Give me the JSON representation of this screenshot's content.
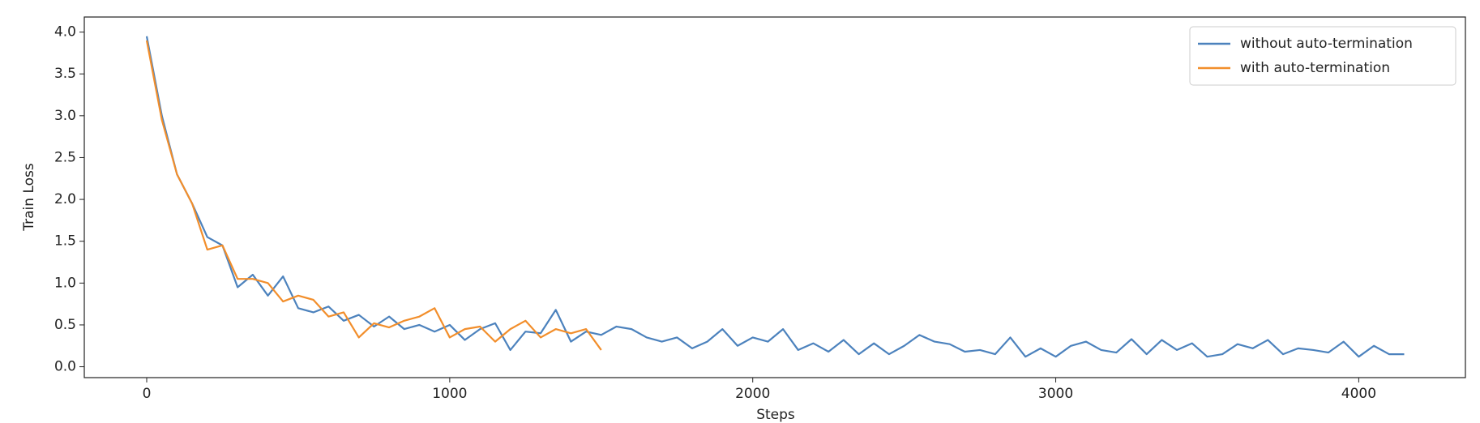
{
  "chart_data": {
    "type": "line",
    "xlabel": "Steps",
    "ylabel": "Train Loss",
    "x": [
      0,
      50,
      100,
      150,
      200,
      250,
      300,
      350,
      400,
      450,
      500,
      550,
      600,
      650,
      700,
      750,
      800,
      850,
      900,
      950,
      1000,
      1050,
      1100,
      1150,
      1200,
      1250,
      1300,
      1350,
      1400,
      1450,
      1500,
      1550,
      1600,
      1650,
      1700,
      1750,
      1800,
      1850,
      1900,
      1950,
      2000,
      2050,
      2100,
      2150,
      2200,
      2250,
      2300,
      2350,
      2400,
      2450,
      2500,
      2550,
      2600,
      2650,
      2700,
      2750,
      2800,
      2850,
      2900,
      2950,
      3000,
      3050,
      3100,
      3150,
      3200,
      3250,
      3300,
      3350,
      3400,
      3450,
      3500,
      3550,
      3600,
      3650,
      3700,
      3750,
      3800,
      3850,
      3900,
      3950,
      4000,
      4050,
      4100,
      4150
    ],
    "series": [
      {
        "name": "without auto-termination",
        "color": "#4c82bd",
        "values": [
          3.95,
          3.0,
          2.3,
          1.95,
          1.55,
          1.45,
          0.95,
          1.1,
          0.85,
          1.08,
          0.7,
          0.65,
          0.72,
          0.55,
          0.62,
          0.48,
          0.6,
          0.45,
          0.5,
          0.42,
          0.5,
          0.32,
          0.45,
          0.52,
          0.2,
          0.42,
          0.4,
          0.68,
          0.3,
          0.42,
          0.38,
          0.48,
          0.45,
          0.35,
          0.3,
          0.35,
          0.22,
          0.3,
          0.45,
          0.25,
          0.35,
          0.3,
          0.45,
          0.2,
          0.28,
          0.18,
          0.32,
          0.15,
          0.28,
          0.15,
          0.25,
          0.38,
          0.3,
          0.27,
          0.18,
          0.2,
          0.15,
          0.35,
          0.12,
          0.22,
          0.12,
          0.25,
          0.3,
          0.2,
          0.17,
          0.33,
          0.15,
          0.32,
          0.2,
          0.28,
          0.12,
          0.15,
          0.27,
          0.22,
          0.32,
          0.15,
          0.22,
          0.2,
          0.17,
          0.3,
          0.12,
          0.25,
          0.15,
          0.15
        ]
      },
      {
        "name": "with auto-termination",
        "color": "#f28e2b",
        "values": [
          3.9,
          2.95,
          2.3,
          1.95,
          1.4,
          1.45,
          1.05,
          1.05,
          1.0,
          0.78,
          0.85,
          0.8,
          0.6,
          0.65,
          0.35,
          0.52,
          0.47,
          0.55,
          0.6,
          0.7,
          0.35,
          0.45,
          0.48,
          0.3,
          0.45,
          0.55,
          0.35,
          0.45,
          0.4,
          0.45,
          0.2,
          null,
          null,
          null,
          null,
          null,
          null,
          null,
          null,
          null,
          null,
          null,
          null,
          null,
          null,
          null,
          null,
          null,
          null,
          null,
          null,
          null,
          null,
          null,
          null,
          null,
          null,
          null,
          null,
          null,
          null,
          null,
          null,
          null,
          null,
          null,
          null,
          null,
          null,
          null,
          null,
          null,
          null,
          null,
          null,
          null,
          null,
          null,
          null,
          null,
          null,
          null,
          null,
          null
        ]
      }
    ],
    "xlim": [
      -206,
      4352
    ],
    "ylim": [
      -0.13,
      4.18
    ],
    "xticks": [
      0,
      1000,
      2000,
      3000,
      4000
    ],
    "yticks": [
      {
        "value": 0,
        "label": "0.0"
      },
      0.5,
      {
        "value": 1,
        "label": "1.0"
      },
      1.5,
      {
        "value": 2,
        "label": "2.0"
      },
      2.5,
      {
        "value": 3,
        "label": "3.0"
      },
      3.5,
      {
        "value": 4,
        "label": "4.0"
      }
    ],
    "legend": "upper right",
    "grid": false
  }
}
